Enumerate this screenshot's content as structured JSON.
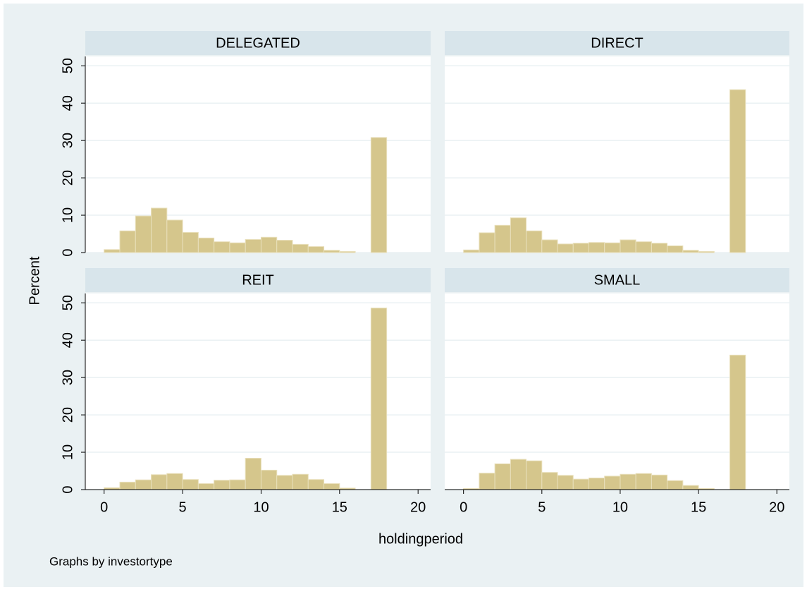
{
  "chart_data": {
    "type": "histogram",
    "panels": [
      {
        "title": "DELEGATED",
        "values": [
          0.8,
          5.8,
          9.8,
          11.9,
          8.7,
          5.4,
          3.9,
          2.9,
          2.6,
          3.5,
          4.1,
          3.3,
          2.2,
          1.6,
          0.6,
          0.3,
          0,
          30.8
        ]
      },
      {
        "title": "DIRECT",
        "values": [
          0.7,
          5.3,
          7.3,
          9.3,
          5.8,
          3.4,
          2.3,
          2.5,
          2.7,
          2.6,
          3.4,
          2.9,
          2.5,
          1.8,
          0.6,
          0.3,
          0,
          43.6
        ]
      },
      {
        "title": "REIT",
        "values": [
          0.5,
          2.0,
          2.6,
          4.0,
          4.3,
          2.7,
          1.6,
          2.5,
          2.6,
          8.4,
          5.2,
          3.8,
          4.1,
          2.7,
          1.6,
          0.4,
          0,
          48.6
        ]
      },
      {
        "title": "SMALL",
        "values": [
          0.3,
          4.4,
          6.9,
          8.1,
          7.7,
          4.6,
          3.8,
          2.8,
          3.1,
          3.6,
          4.1,
          4.3,
          3.9,
          2.4,
          1.1,
          0.3,
          0,
          36.0
        ]
      }
    ],
    "bins": [
      0,
      1,
      2,
      3,
      4,
      5,
      6,
      7,
      8,
      9,
      10,
      11,
      12,
      13,
      14,
      15,
      16,
      17,
      18
    ],
    "xlim": [
      -1.2,
      20.8
    ],
    "xticks": [
      0,
      5,
      10,
      15,
      20
    ],
    "ylim": [
      0,
      52.5
    ],
    "yticks": [
      0,
      10,
      20,
      30,
      40,
      50
    ],
    "color": "#d5c68c",
    "grid": true,
    "y_label": "Percent",
    "x_label": "holdingperiod",
    "note": "Graphs by investortype"
  }
}
